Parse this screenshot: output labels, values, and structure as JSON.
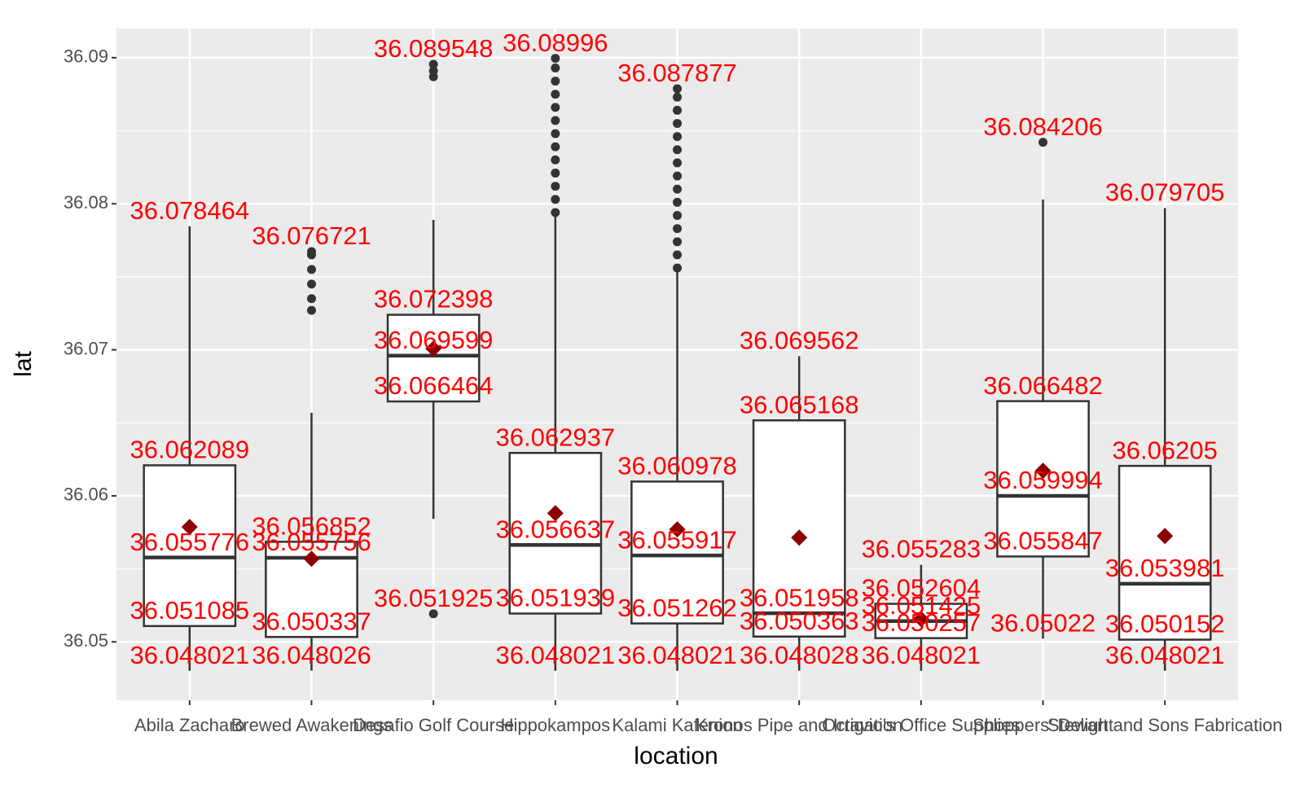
{
  "chart_data": {
    "type": "boxplot",
    "x_label": "location",
    "y_label": "lat",
    "ylim": [
      36.046,
      36.092
    ],
    "yticks": [
      36.05,
      36.06,
      36.07,
      36.08,
      36.09
    ],
    "grid": true,
    "box_color": "#333333",
    "mean_color": "#8b0000",
    "label_color": "#ff0000",
    "boxes": [
      {
        "category": "Abila Zacharo",
        "whislo": 36.048021,
        "q1": 36.051085,
        "med": 36.055776,
        "q3": 36.062089,
        "whishi": 36.078464,
        "mean": 36.05787,
        "outliers": []
      },
      {
        "category": "Brewed Awakenings",
        "whislo": 36.048026,
        "q1": 36.050337,
        "med": 36.055756,
        "q3": 36.056852,
        "whishi": 36.06568,
        "mean": 36.05569,
        "outliers": [
          36.0727,
          36.0735,
          36.0745,
          36.0755,
          36.0765,
          36.076721
        ]
      },
      {
        "category": "Desafio Golf Course",
        "whislo": 36.05842,
        "q1": 36.066464,
        "med": 36.069599,
        "q3": 36.072398,
        "whishi": 36.0789,
        "mean": 36.07008,
        "outliers": [
          36.051925,
          36.0887,
          36.0891,
          36.089548
        ]
      },
      {
        "category": "Hippokampos",
        "whislo": 36.048021,
        "q1": 36.051939,
        "med": 36.056637,
        "q3": 36.062937,
        "whishi": 36.07923,
        "mean": 36.05881,
        "outliers": [
          36.0794,
          36.0803,
          36.0812,
          36.0821,
          36.083,
          36.0839,
          36.0848,
          36.0857,
          36.0866,
          36.0875,
          36.0884,
          36.0893,
          36.08996
        ]
      },
      {
        "category": "Kalami Kafenion",
        "whislo": 36.048021,
        "q1": 36.051262,
        "med": 36.055917,
        "q3": 36.060978,
        "whishi": 36.07538,
        "mean": 36.0577,
        "outliers": [
          36.0756,
          36.0765,
          36.0774,
          36.0783,
          36.0792,
          36.0801,
          36.081,
          36.0819,
          36.0828,
          36.0837,
          36.0846,
          36.0855,
          36.0864,
          36.0873,
          36.087877
        ]
      },
      {
        "category": "Kronos Pipe and Irrigation",
        "whislo": 36.048028,
        "q1": 36.050363,
        "med": 36.051958,
        "q3": 36.065168,
        "whishi": 36.069562,
        "mean": 36.05714,
        "outliers": []
      },
      {
        "category": "Octavio's Office Supplies",
        "whislo": 36.048021,
        "q1": 36.050257,
        "med": 36.051425,
        "q3": 36.052604,
        "whishi": 36.055283,
        "mean": 36.05156,
        "outliers": []
      },
      {
        "category": "Shoppers' Delight",
        "whislo": 36.05022,
        "q1": 36.055847,
        "med": 36.059994,
        "q3": 36.066482,
        "whishi": 36.08029,
        "mean": 36.06172,
        "outliers": [
          36.084206
        ]
      },
      {
        "category": "Stewart and Sons Fabrication",
        "whislo": 36.048021,
        "q1": 36.050152,
        "med": 36.053981,
        "q3": 36.06205,
        "whishi": 36.079705,
        "mean": 36.05725,
        "outliers": []
      }
    ]
  }
}
